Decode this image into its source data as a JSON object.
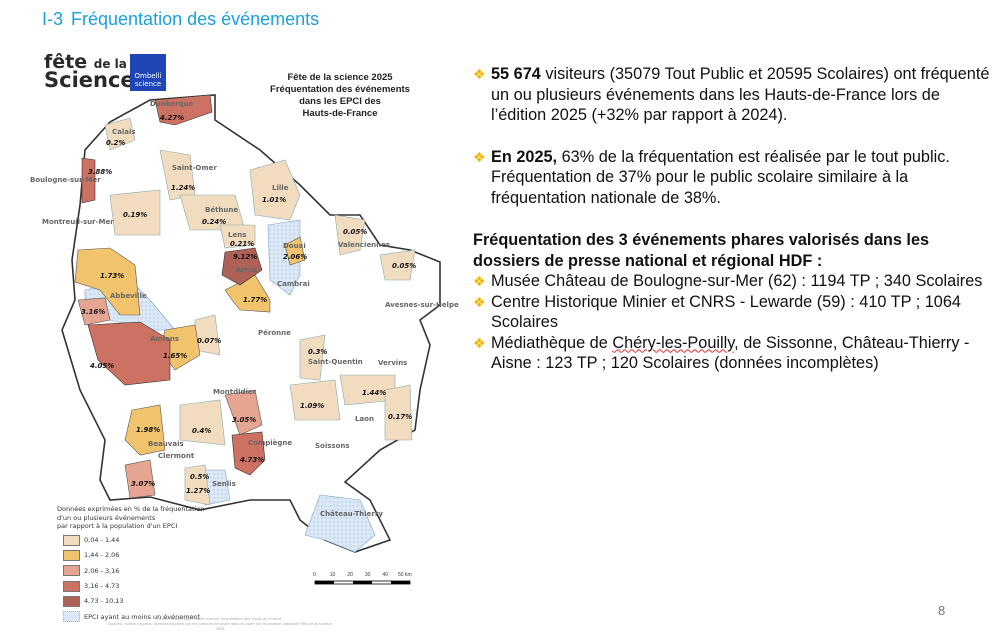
{
  "slide": {
    "section_number": "I-3",
    "title": "Fréquentation des événements",
    "page_number": "8"
  },
  "logo": {
    "line1": "fête",
    "line1_small": "de la",
    "line2": "Science",
    "partner": "Ombelli science"
  },
  "map": {
    "title_lines": [
      "Fête de la science 2025",
      "Fréquentation des événements",
      "dans les EPCI des",
      "Hauts-de-France"
    ],
    "places": [
      "Dunkerque",
      "Calais",
      "Boulogne-sur-Mer",
      "Saint-Omer",
      "Lille",
      "Montreuil-sur-Mer",
      "Béthune",
      "Lens",
      "Douai",
      "Valenciennes",
      "Arras",
      "Abbeville",
      "Cambrai",
      "Avesnes-sur-Helpe",
      "Péronne",
      "Amiens",
      "Saint-Quentin",
      "Vervins",
      "Laon",
      "Montdidier",
      "Beauvais",
      "Clermont",
      "Compiègne",
      "Soissons",
      "Senlis",
      "Château-Thierry"
    ],
    "percentages": [
      "4.27%",
      "0.2%",
      "3.88%",
      "1.24%",
      "1.01%",
      "0.19%",
      "0.24%",
      "0.21%",
      "2.06%",
      "0.05%",
      "0.05%",
      "9.12%",
      "1.73%",
      "1.77%",
      "3.16%",
      "0.07%",
      "1.65%",
      "4.05%",
      "0.3%",
      "1.44%",
      "1.09%",
      "0.17%",
      "3.05%",
      "1.98%",
      "0.4%",
      "4.73%",
      "0.5%",
      "1.27%",
      "3.07%"
    ],
    "legend": {
      "title_lines": [
        "Données exprimées en % de la fréquentation",
        "d'un ou plusieurs événements",
        "par rapport à la population d'un EPCI"
      ],
      "classes": [
        {
          "label": "0,04 - 1,44",
          "color": "#f1dcbf"
        },
        {
          "label": "1,44 - 2,06",
          "color": "#f1c36c"
        },
        {
          "label": "2,06 - 3,16",
          "color": "#e6a590"
        },
        {
          "label": "3,16 - 4,73",
          "color": "#cd7262"
        },
        {
          "label": "4,73 - 10,13",
          "color": "#ad6157"
        }
      ],
      "event_label": "EPCI ayant au moins un événement",
      "event_color": "#dbe8f5"
    },
    "scale_ticks": [
      "0",
      "10",
      "20",
      "30",
      "40",
      "50 km"
    ],
    "credit_lines": [
      "Carte réalisée par Ombelli science coordination des Hauts-de-France",
      "sources : Admin express, données fournies par les porteurs de projet dans le cadre de l'évaluation nationale Fête de la science",
      "2025"
    ]
  },
  "content": {
    "p1_bold": "55 674",
    "p1_text": " visiteurs (35079 Tout Public et 20595 Scolaires) ont fréquenté un ou plusieurs événements  dans les Hauts-de-France lors de l’édition 2025 (+32% par rapport à 2024).",
    "p2_bold": "En 2025,",
    "p2_text": " 63% de la fréquentation est réalisée par le tout public. Fréquentation de 37% pour le public scolaire similaire à la fréquentation nationale de 38%.",
    "heading": "Fréquentation des 3 événements phares valorisés dans les dossiers de presse national et régional HDF :",
    "items": [
      "Musée Château de Boulogne-sur-Mer (62) : 1194 TP ; 340 Scolaires",
      "Centre Historique Minier et CNRS - Lewarde (59) : 410 TP ; 1064 Scolaires"
    ],
    "item3_pre": "Médiathèque de ",
    "item3_squiggle": "Chéry-les-Pouilly",
    "item3_post": ", de Sissonne, Château-Thierry - Aisne : 123 TP ; 120 Scolaires (données incomplètes)"
  },
  "colors": {
    "title": "#1a9fe0",
    "bullet": "#f5b400"
  }
}
